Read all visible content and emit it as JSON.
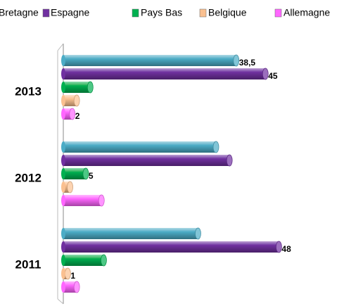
{
  "chart_data": {
    "type": "bar",
    "orientation": "horizontal",
    "categories": [
      "2013",
      "2012",
      "2011"
    ],
    "xlim": [
      0,
      60
    ],
    "series": [
      {
        "name": "Bretagne",
        "color": "#4bacc6",
        "values": [
          38.5,
          34,
          30
        ],
        "value_labels": [
          "38,5",
          null,
          null
        ]
      },
      {
        "name": "Espagne",
        "color": "#7030a0",
        "values": [
          45,
          37,
          48
        ],
        "value_labels": [
          "45",
          null,
          "48"
        ]
      },
      {
        "name": "Pays Bas",
        "color": "#00b050",
        "values": [
          6,
          5,
          9
        ],
        "value_labels": [
          null,
          "5",
          null
        ]
      },
      {
        "name": "Belgique",
        "color": "#fac090",
        "values": [
          3,
          1.5,
          1
        ],
        "value_labels": [
          null,
          null,
          "1"
        ]
      },
      {
        "name": "Allemagne",
        "color": "#ff66ff",
        "values": [
          2,
          8.5,
          3
        ],
        "value_labels": [
          "2",
          null,
          null
        ]
      }
    ]
  }
}
